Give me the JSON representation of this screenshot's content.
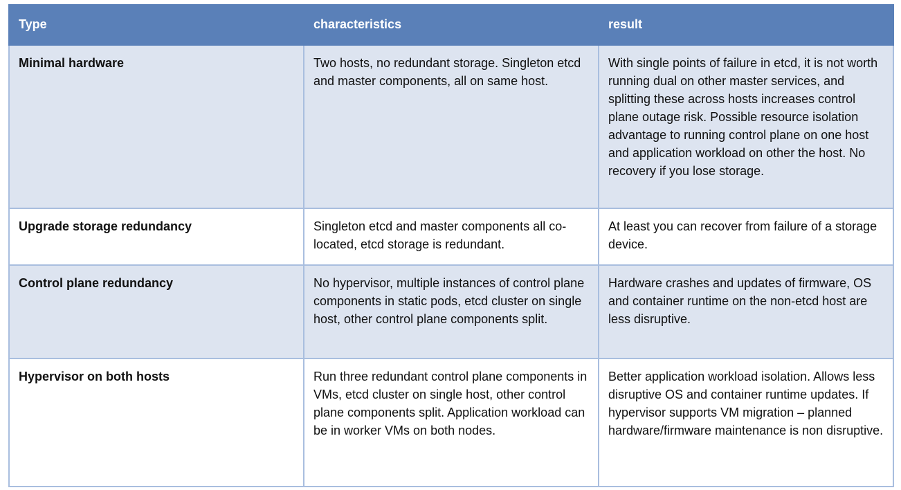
{
  "table": {
    "headers": [
      "Type",
      "characteristics",
      "result"
    ],
    "rows": [
      {
        "type": "Minimal hardware",
        "characteristics": "Two hosts, no redundant storage. Singleton etcd and master components, all on same host.",
        "result": "With single points of failure in etcd, it is not worth running dual on other master services, and splitting these across hosts increases control plane outage risk. Possible resource isolation advantage to running control plane on one host and application workload on other the host. No recovery if you lose storage."
      },
      {
        "type": "Upgrade storage redundancy",
        "characteristics": "Singleton etcd and master components all co-located, etcd storage is redundant.",
        "result": "At least you can recover from failure of a storage device."
      },
      {
        "type": "Control plane redundancy",
        "characteristics": "No hypervisor, multiple instances of control plane components in static pods, etcd cluster on single host, other control plane components split.",
        "result": "Hardware crashes and updates of firmware, OS and container runtime on the non-etcd host are less disruptive."
      },
      {
        "type": "Hypervisor on both hosts",
        "characteristics": "Run three redundant control plane components in VMs, etcd cluster on single host, other control plane components split. Application workload can be in worker VMs on both nodes.",
        "result": "Better application workload isolation. Allows less disruptive OS and container runtime updates. If hypervisor supports VM migration – planned hardware/firmware maintenance is non disruptive."
      }
    ]
  },
  "colors": {
    "header_bg": "#5a80b8",
    "shaded_row": "#dde4f0",
    "border": "#a9bedf"
  }
}
